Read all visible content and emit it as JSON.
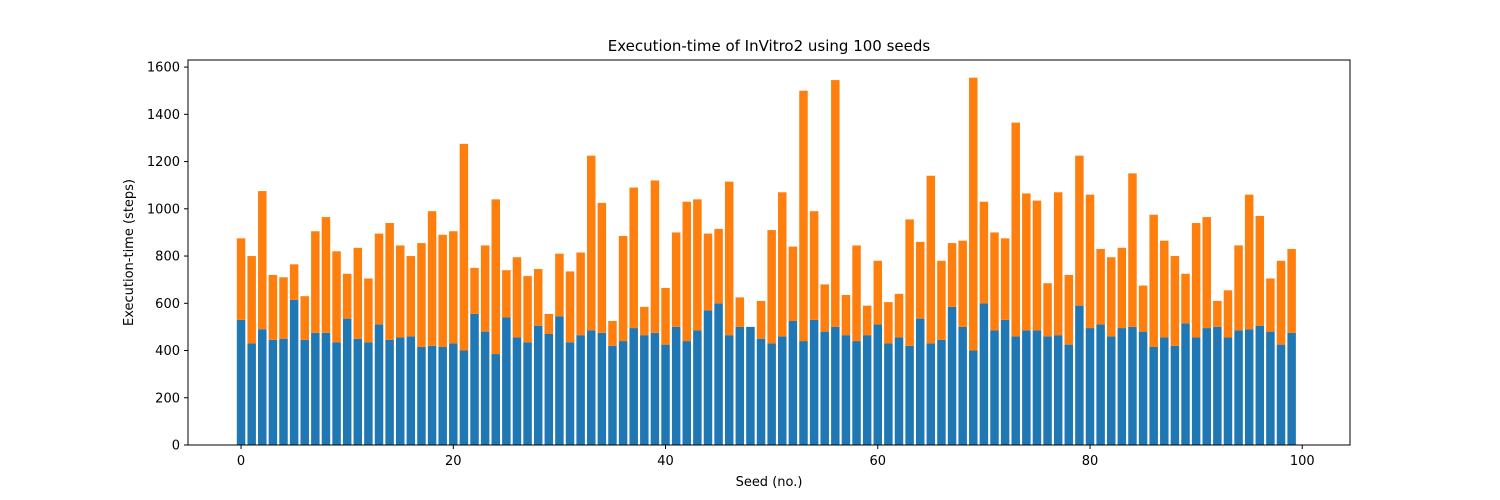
{
  "chart_data": {
    "type": "bar",
    "stacked": true,
    "title": "Execution-time of InVitro2 using 100 seeds",
    "xlabel": "Seed (no.)",
    "ylabel": "Execution-time (steps)",
    "xlim": [
      -5,
      104.5
    ],
    "ylim": [
      0,
      1630
    ],
    "xticks": [
      0,
      20,
      40,
      60,
      80,
      100
    ],
    "yticks": [
      0,
      200,
      400,
      600,
      800,
      1000,
      1200,
      1400,
      1600
    ],
    "x": [
      0,
      1,
      2,
      3,
      4,
      5,
      6,
      7,
      8,
      9,
      10,
      11,
      12,
      13,
      14,
      15,
      16,
      17,
      18,
      19,
      20,
      21,
      22,
      23,
      24,
      25,
      26,
      27,
      28,
      29,
      30,
      31,
      32,
      33,
      34,
      35,
      36,
      37,
      38,
      39,
      40,
      41,
      42,
      43,
      44,
      45,
      46,
      47,
      48,
      49,
      50,
      51,
      52,
      53,
      54,
      55,
      56,
      57,
      58,
      59,
      60,
      61,
      62,
      63,
      64,
      65,
      66,
      67,
      68,
      69,
      70,
      71,
      72,
      73,
      74,
      75,
      76,
      77,
      78,
      79,
      80,
      81,
      82,
      83,
      84,
      85,
      86,
      87,
      88,
      89,
      90,
      91,
      92,
      93,
      94,
      95,
      96,
      97,
      98,
      99
    ],
    "grid": false,
    "series": [
      {
        "color": "#1f77b4",
        "values": [
          530,
          430,
          490,
          445,
          450,
          615,
          445,
          475,
          475,
          435,
          535,
          450,
          435,
          510,
          445,
          455,
          460,
          415,
          420,
          415,
          430,
          400,
          555,
          480,
          385,
          540,
          455,
          435,
          505,
          470,
          545,
          435,
          465,
          485,
          475,
          420,
          440,
          495,
          465,
          475,
          425,
          500,
          440,
          485,
          570,
          600,
          465,
          500,
          500,
          450,
          430,
          460,
          525,
          440,
          530,
          480,
          500,
          465,
          440,
          465,
          510,
          430,
          455,
          420,
          535,
          430,
          445,
          585,
          500,
          400,
          600,
          485,
          530,
          460,
          485,
          485,
          460,
          465,
          425,
          590,
          495,
          510,
          460,
          495,
          500,
          480,
          415,
          455,
          420,
          515,
          455,
          495,
          500,
          455,
          485,
          490,
          505,
          480,
          425,
          475
        ]
      },
      {
        "color": "#ff7f0e",
        "values": [
          345,
          370,
          585,
          275,
          260,
          150,
          185,
          430,
          490,
          385,
          190,
          385,
          270,
          385,
          495,
          390,
          340,
          440,
          570,
          475,
          475,
          875,
          195,
          365,
          655,
          200,
          340,
          280,
          240,
          85,
          265,
          300,
          350,
          740,
          550,
          105,
          445,
          595,
          120,
          645,
          240,
          400,
          590,
          555,
          325,
          315,
          650,
          125,
          0,
          160,
          480,
          610,
          315,
          1060,
          460,
          200,
          1045,
          170,
          405,
          125,
          270,
          175,
          185,
          535,
          325,
          710,
          335,
          270,
          365,
          1155,
          430,
          415,
          345,
          905,
          580,
          550,
          225,
          605,
          295,
          635,
          565,
          320,
          335,
          340,
          650,
          195,
          560,
          410,
          380,
          210,
          485,
          470,
          110,
          200,
          360,
          570,
          465,
          225,
          355,
          355
        ]
      }
    ]
  }
}
